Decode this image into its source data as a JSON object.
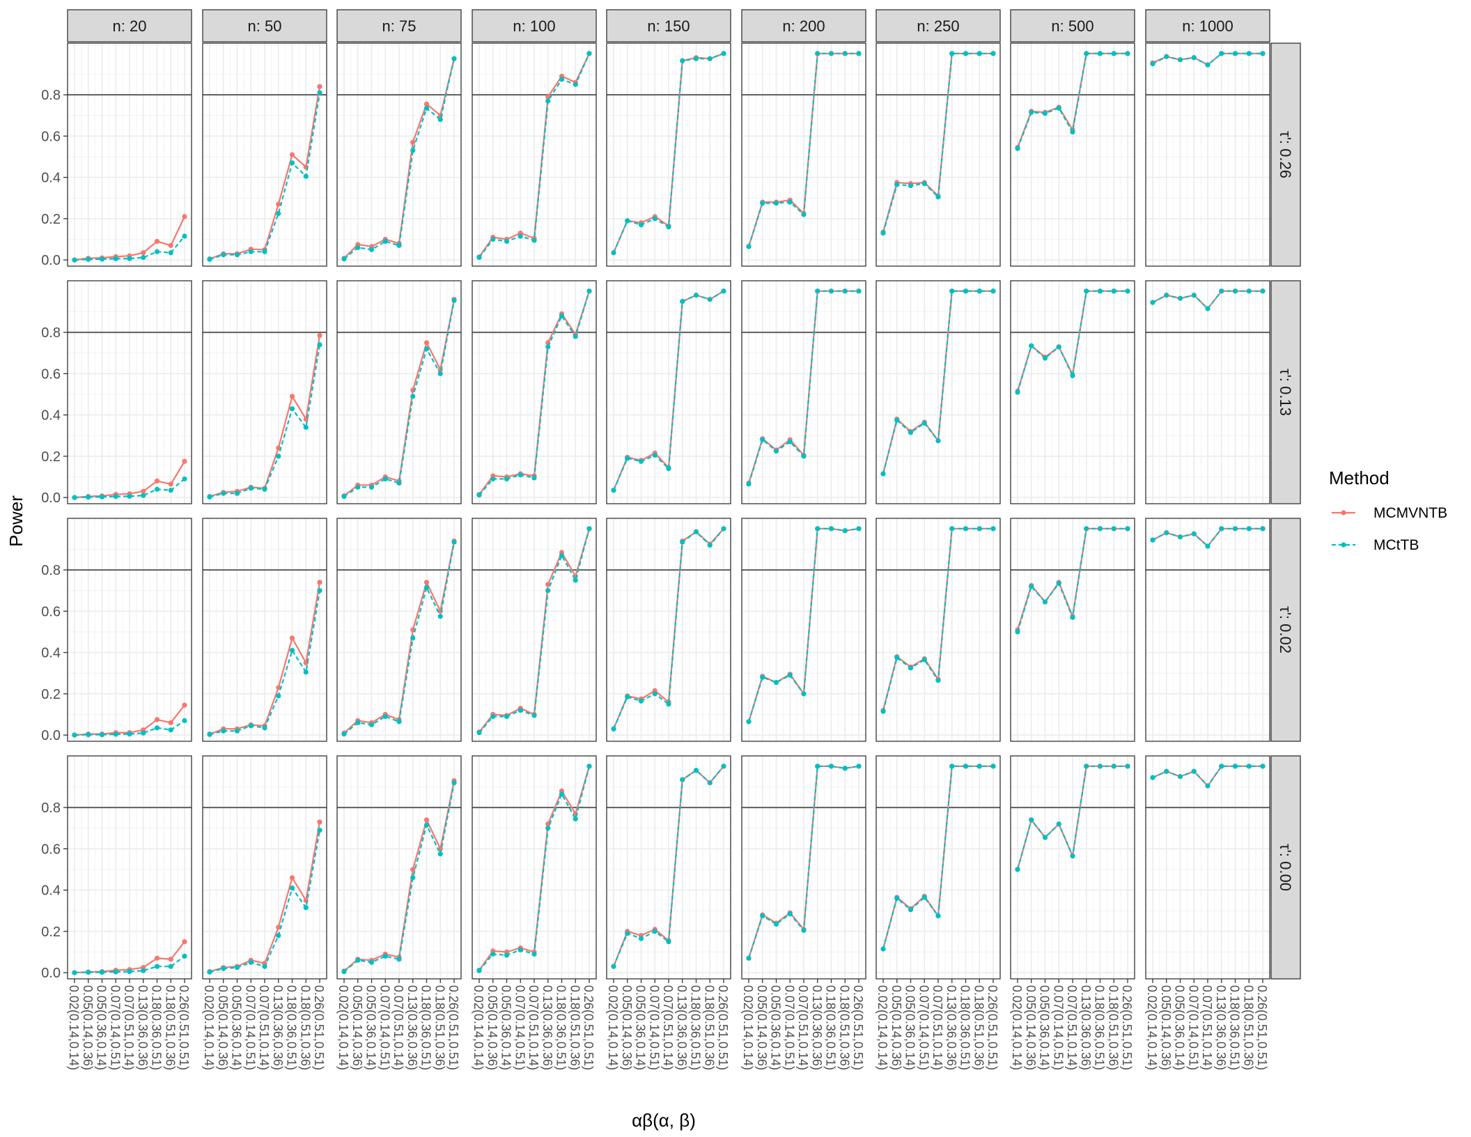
{
  "chart_data": {
    "type": "line",
    "facet_type": "grid",
    "y_axis_label": "Power",
    "x_axis_label": "αβ(α, β)",
    "col_labels": [
      "n: 20",
      "n: 50",
      "n: 75",
      "n: 100",
      "n: 150",
      "n: 200",
      "n: 250",
      "n: 500",
      "n: 1000"
    ],
    "row_labels": [
      "τ': 0.26",
      "τ': 0.13",
      "τ': 0.02",
      "τ': 0.00"
    ],
    "x_tick_labels": [
      "0.02(0.14,0.14)",
      "0.05(0.14,0.36)",
      "0.05(0.36,0.14)",
      "0.07(0.14,0.51)",
      "0.07(0.51,0.14)",
      "0.13(0.36,0.36)",
      "0.18(0.36,0.51)",
      "0.18(0.51,0.36)",
      "0.26(0.51,0.51)"
    ],
    "y_tick_labels": [
      "0.0",
      "0.2",
      "0.4",
      "0.6",
      "0.8"
    ],
    "ylim": [
      -0.03,
      1.05
    ],
    "reference_line": 0.8,
    "grid": true,
    "legend": {
      "title": "Method",
      "position": "right",
      "entries": [
        "MCMVNTB",
        "MCtTB"
      ],
      "colors": [
        "#F8766D",
        "#00BFC4"
      ],
      "linetypes": [
        "solid",
        "dashed"
      ]
    },
    "series": [
      {
        "name": "MCMVNTB",
        "values": [
          [
            [
              0.0,
              0.008,
              0.01,
              0.016,
              0.02,
              0.035,
              0.09,
              0.07,
              0.21
            ],
            [
              0.005,
              0.03,
              0.03,
              0.052,
              0.05,
              0.27,
              0.51,
              0.45,
              0.84
            ],
            [
              0.008,
              0.075,
              0.065,
              0.1,
              0.08,
              0.57,
              0.755,
              0.7,
              0.975
            ],
            [
              0.015,
              0.11,
              0.1,
              0.13,
              0.105,
              0.79,
              0.89,
              0.86,
              1.0
            ],
            [
              0.035,
              0.19,
              0.18,
              0.21,
              0.165,
              0.965,
              0.98,
              0.975,
              1.0
            ],
            [
              0.065,
              0.28,
              0.28,
              0.29,
              0.225,
              1.0,
              1.0,
              1.0,
              1.0
            ],
            [
              0.135,
              0.375,
              0.37,
              0.375,
              0.31,
              1.0,
              1.0,
              1.0,
              1.0
            ],
            [
              0.545,
              0.72,
              0.715,
              0.74,
              0.63,
              1.0,
              1.0,
              1.0,
              1.0
            ],
            [
              0.955,
              0.985,
              0.97,
              0.98,
              0.945,
              1.0,
              1.0,
              1.0,
              1.0
            ]
          ],
          [
            [
              0.0,
              0.005,
              0.008,
              0.015,
              0.018,
              0.03,
              0.08,
              0.065,
              0.175
            ],
            [
              0.005,
              0.025,
              0.03,
              0.05,
              0.045,
              0.24,
              0.49,
              0.38,
              0.785
            ],
            [
              0.008,
              0.06,
              0.06,
              0.1,
              0.08,
              0.52,
              0.75,
              0.62,
              0.96
            ],
            [
              0.015,
              0.105,
              0.1,
              0.115,
              0.105,
              0.75,
              0.89,
              0.79,
              1.0
            ],
            [
              0.035,
              0.195,
              0.18,
              0.215,
              0.145,
              0.95,
              0.98,
              0.96,
              1.0
            ],
            [
              0.07,
              0.285,
              0.23,
              0.28,
              0.205,
              1.0,
              1.0,
              1.0,
              1.0
            ],
            [
              0.115,
              0.38,
              0.32,
              0.365,
              0.275,
              1.0,
              1.0,
              1.0,
              1.0
            ],
            [
              0.515,
              0.735,
              0.68,
              0.73,
              0.595,
              1.0,
              1.0,
              1.0,
              1.0
            ],
            [
              0.945,
              0.98,
              0.965,
              0.98,
              0.915,
              1.0,
              1.0,
              1.0,
              1.0
            ]
          ],
          [
            [
              0.0,
              0.005,
              0.005,
              0.012,
              0.012,
              0.025,
              0.075,
              0.06,
              0.145
            ],
            [
              0.005,
              0.03,
              0.03,
              0.05,
              0.045,
              0.23,
              0.47,
              0.35,
              0.74
            ],
            [
              0.01,
              0.07,
              0.06,
              0.1,
              0.075,
              0.51,
              0.74,
              0.6,
              0.94
            ],
            [
              0.015,
              0.1,
              0.095,
              0.13,
              0.1,
              0.73,
              0.885,
              0.77,
              1.0
            ],
            [
              0.03,
              0.19,
              0.175,
              0.215,
              0.16,
              0.94,
              0.985,
              0.925,
              1.0
            ],
            [
              0.065,
              0.285,
              0.255,
              0.295,
              0.2,
              1.0,
              1.0,
              0.99,
              1.0
            ],
            [
              0.12,
              0.38,
              0.33,
              0.37,
              0.27,
              1.0,
              1.0,
              1.0,
              1.0
            ],
            [
              0.51,
              0.725,
              0.645,
              0.74,
              0.575,
              1.0,
              1.0,
              1.0,
              1.0
            ],
            [
              0.945,
              0.98,
              0.96,
              0.975,
              0.915,
              1.0,
              1.0,
              1.0,
              1.0
            ]
          ],
          [
            [
              0.0,
              0.003,
              0.005,
              0.012,
              0.015,
              0.025,
              0.07,
              0.065,
              0.15
            ],
            [
              0.005,
              0.025,
              0.03,
              0.06,
              0.045,
              0.22,
              0.46,
              0.35,
              0.73
            ],
            [
              0.008,
              0.065,
              0.06,
              0.09,
              0.075,
              0.5,
              0.74,
              0.6,
              0.93
            ],
            [
              0.012,
              0.105,
              0.1,
              0.12,
              0.1,
              0.72,
              0.88,
              0.77,
              1.0
            ],
            [
              0.03,
              0.2,
              0.18,
              0.21,
              0.155,
              0.935,
              0.98,
              0.92,
              1.0
            ],
            [
              0.07,
              0.28,
              0.24,
              0.29,
              0.21,
              1.0,
              1.0,
              0.99,
              1.0
            ],
            [
              0.115,
              0.365,
              0.31,
              0.37,
              0.275,
              1.0,
              1.0,
              1.0,
              1.0
            ],
            [
              0.5,
              0.74,
              0.655,
              0.72,
              0.565,
              1.0,
              1.0,
              1.0,
              1.0
            ],
            [
              0.945,
              0.975,
              0.95,
              0.975,
              0.905,
              1.0,
              1.0,
              1.0,
              1.0
            ]
          ]
        ]
      },
      {
        "name": "MCtTB",
        "values": [
          [
            [
              0.0,
              0.003,
              0.004,
              0.006,
              0.007,
              0.012,
              0.04,
              0.035,
              0.115
            ],
            [
              0.003,
              0.025,
              0.025,
              0.04,
              0.04,
              0.225,
              0.47,
              0.405,
              0.81
            ],
            [
              0.005,
              0.06,
              0.05,
              0.09,
              0.07,
              0.53,
              0.735,
              0.68,
              0.975
            ],
            [
              0.012,
              0.1,
              0.09,
              0.115,
              0.095,
              0.77,
              0.875,
              0.85,
              1.0
            ],
            [
              0.035,
              0.19,
              0.17,
              0.2,
              0.16,
              0.965,
              0.975,
              0.975,
              1.0
            ],
            [
              0.065,
              0.275,
              0.275,
              0.28,
              0.22,
              1.0,
              1.0,
              1.0,
              1.0
            ],
            [
              0.13,
              0.365,
              0.36,
              0.37,
              0.305,
              1.0,
              1.0,
              1.0,
              1.0
            ],
            [
              0.54,
              0.715,
              0.71,
              0.735,
              0.62,
              1.0,
              1.0,
              1.0,
              1.0
            ],
            [
              0.95,
              0.985,
              0.97,
              0.98,
              0.945,
              1.0,
              1.0,
              1.0,
              1.0
            ]
          ],
          [
            [
              0.0,
              0.002,
              0.003,
              0.005,
              0.006,
              0.01,
              0.04,
              0.035,
              0.09
            ],
            [
              0.003,
              0.02,
              0.02,
              0.045,
              0.04,
              0.2,
              0.43,
              0.34,
              0.74
            ],
            [
              0.005,
              0.05,
              0.05,
              0.09,
              0.07,
              0.49,
              0.72,
              0.6,
              0.955
            ],
            [
              0.012,
              0.09,
              0.09,
              0.11,
              0.095,
              0.73,
              0.88,
              0.78,
              1.0
            ],
            [
              0.035,
              0.19,
              0.175,
              0.205,
              0.14,
              0.95,
              0.98,
              0.96,
              1.0
            ],
            [
              0.065,
              0.28,
              0.225,
              0.27,
              0.2,
              1.0,
              1.0,
              1.0,
              1.0
            ],
            [
              0.115,
              0.375,
              0.315,
              0.36,
              0.275,
              1.0,
              1.0,
              1.0,
              1.0
            ],
            [
              0.51,
              0.735,
              0.675,
              0.73,
              0.59,
              1.0,
              1.0,
              1.0,
              1.0
            ],
            [
              0.945,
              0.98,
              0.965,
              0.98,
              0.915,
              1.0,
              1.0,
              1.0,
              1.0
            ]
          ],
          [
            [
              0.0,
              0.002,
              0.002,
              0.004,
              0.005,
              0.01,
              0.035,
              0.025,
              0.07
            ],
            [
              0.003,
              0.02,
              0.02,
              0.045,
              0.035,
              0.19,
              0.41,
              0.305,
              0.7
            ],
            [
              0.005,
              0.06,
              0.05,
              0.09,
              0.065,
              0.47,
              0.715,
              0.575,
              0.935
            ],
            [
              0.012,
              0.09,
              0.09,
              0.12,
              0.095,
              0.7,
              0.87,
              0.75,
              1.0
            ],
            [
              0.03,
              0.185,
              0.165,
              0.2,
              0.15,
              0.935,
              0.985,
              0.92,
              1.0
            ],
            [
              0.065,
              0.28,
              0.255,
              0.29,
              0.2,
              1.0,
              1.0,
              0.99,
              1.0
            ],
            [
              0.115,
              0.375,
              0.325,
              0.365,
              0.265,
              1.0,
              1.0,
              1.0,
              1.0
            ],
            [
              0.5,
              0.72,
              0.645,
              0.735,
              0.57,
              1.0,
              1.0,
              1.0,
              1.0
            ],
            [
              0.945,
              0.98,
              0.96,
              0.975,
              0.915,
              1.0,
              1.0,
              1.0,
              1.0
            ]
          ],
          [
            [
              0.0,
              0.002,
              0.002,
              0.004,
              0.005,
              0.01,
              0.03,
              0.03,
              0.08
            ],
            [
              0.003,
              0.02,
              0.025,
              0.05,
              0.03,
              0.18,
              0.41,
              0.315,
              0.69
            ],
            [
              0.005,
              0.06,
              0.05,
              0.08,
              0.065,
              0.46,
              0.715,
              0.575,
              0.92
            ],
            [
              0.01,
              0.09,
              0.085,
              0.11,
              0.09,
              0.7,
              0.865,
              0.745,
              1.0
            ],
            [
              0.03,
              0.19,
              0.165,
              0.2,
              0.15,
              0.935,
              0.98,
              0.92,
              1.0
            ],
            [
              0.07,
              0.275,
              0.235,
              0.285,
              0.205,
              1.0,
              1.0,
              0.99,
              1.0
            ],
            [
              0.115,
              0.36,
              0.305,
              0.365,
              0.275,
              1.0,
              1.0,
              1.0,
              1.0
            ],
            [
              0.5,
              0.74,
              0.655,
              0.72,
              0.565,
              1.0,
              1.0,
              1.0,
              1.0
            ],
            [
              0.945,
              0.975,
              0.95,
              0.975,
              0.905,
              1.0,
              1.0,
              1.0,
              1.0
            ]
          ]
        ]
      }
    ]
  }
}
